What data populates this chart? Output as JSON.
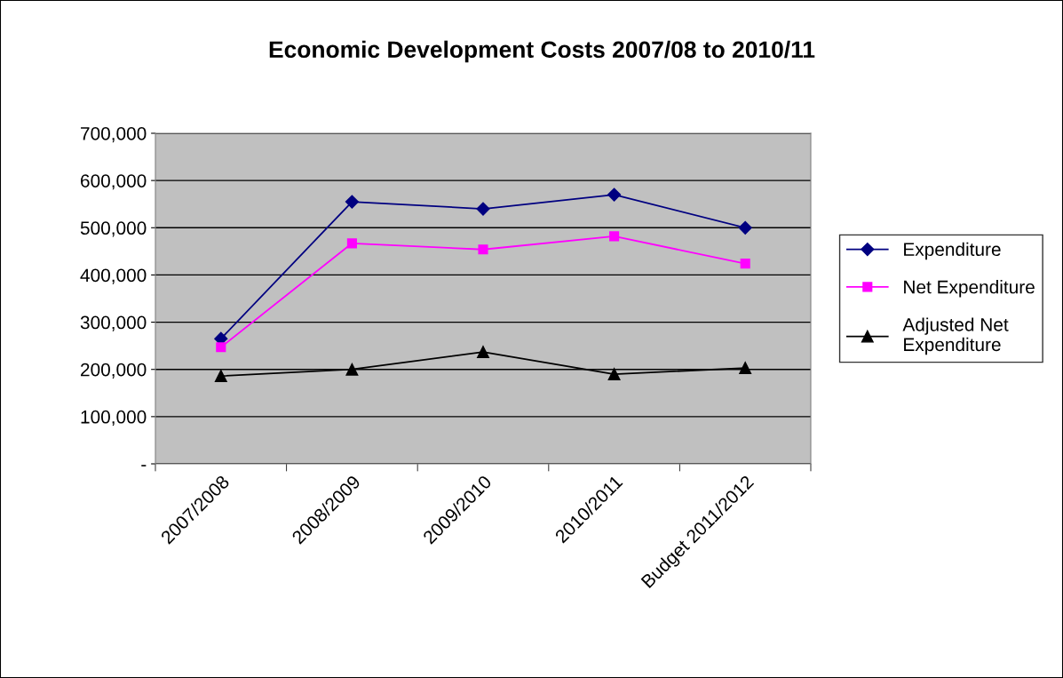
{
  "chart_data": {
    "type": "line",
    "title": "Economic Development Costs 2007/08 to 2010/11",
    "categories": [
      "2007/2008",
      "2008/2009",
      "2009/2010",
      "2010/2011",
      "Budget 2011/2012"
    ],
    "series": [
      {
        "name": "Expenditure",
        "color": "#000080",
        "marker": "diamond",
        "values": [
          265000,
          555000,
          540000,
          570000,
          500000
        ]
      },
      {
        "name": "Net Expenditure",
        "color": "#ff00ff",
        "marker": "square",
        "values": [
          247000,
          467000,
          454000,
          482000,
          424000
        ]
      },
      {
        "name": "Adjusted Net\nExpenditure",
        "color": "#000000",
        "marker": "triangle",
        "values": [
          186000,
          200000,
          237000,
          190000,
          203000
        ]
      }
    ],
    "ylim": [
      0,
      700000
    ],
    "yticks": [
      {
        "value": 0,
        "label": "-"
      },
      {
        "value": 100000,
        "label": "100,000"
      },
      {
        "value": 200000,
        "label": "200,000"
      },
      {
        "value": 300000,
        "label": "300,000"
      },
      {
        "value": 400000,
        "label": "400,000"
      },
      {
        "value": 500000,
        "label": "500,000"
      },
      {
        "value": 600000,
        "label": "600,000"
      },
      {
        "value": 700000,
        "label": "700,000"
      }
    ],
    "grid": "y",
    "legend": "right",
    "line_style": "solid"
  }
}
